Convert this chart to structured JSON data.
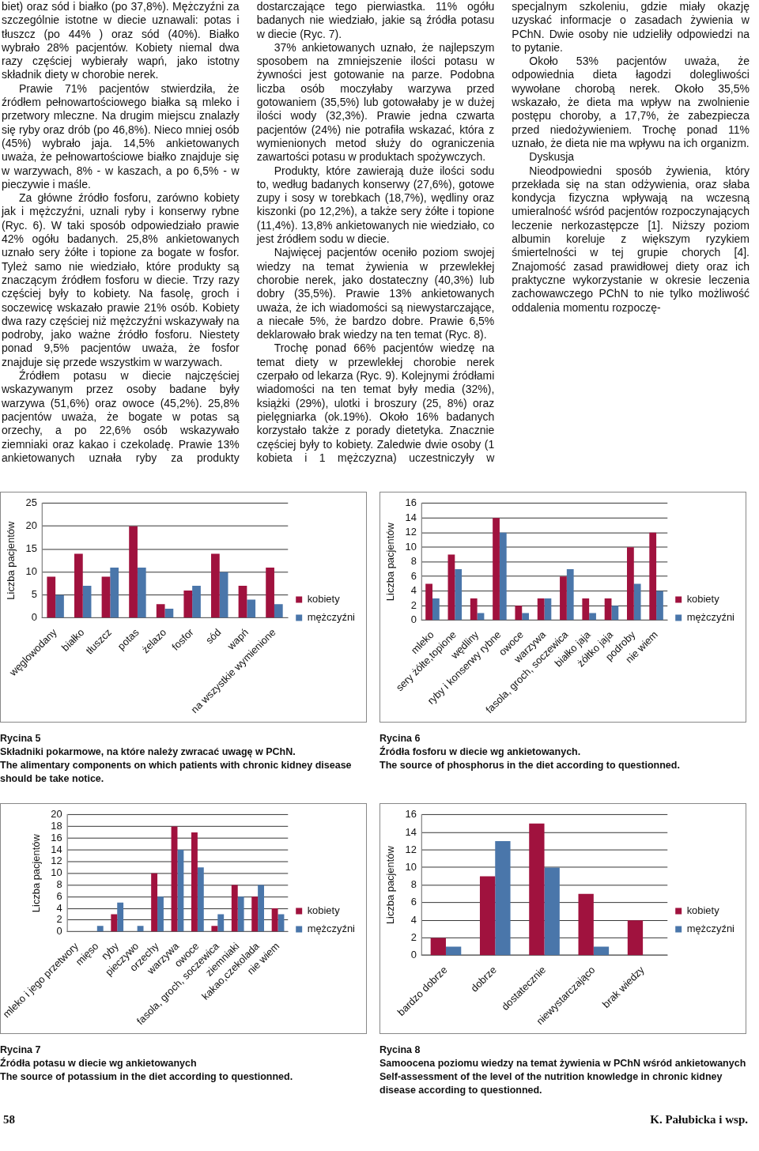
{
  "chart_data": [
    {
      "type": "other",
      "annotations": [
        "biet) oraz sód i białko (po 37,8%). Mężczyźni za szczególnie istotne w diecie uznawali: potas i tłuszcz (po 44% ) oraz sód (40%). Białko wybrało 28% pacjentów. Kobiety niemal dwa razy częściej wybierały wapń, jako istotny składnik diety w chorobie nerek.",
        "Prawie 71% pacjentów stwierdziła, że źródłem pełnowartościowego białka są mleko i przetwory mleczne. Na drugim miejscu znalazły się ryby oraz drób (po 46,8%). Nieco mniej osób (45%) wybrało jaja. 14,5% ankietowanych uważa, że pełnowartościowe białko znajduje się w warzywach, 8% - w kaszach, a po 6,5% - w pieczywie i maśle.",
        "Za główne źródło fosforu, zarówno kobiety jak i mężczyźni, uznali ryby i konserwy rybne (Ryc. 6). W taki sposób odpowiedziało prawie 42% ogółu badanych. 25,8% ankietowanych uznało sery żółte i topione za bogate w fosfor. Tyleż samo nie wiedziało, które produkty są znaczącym źródłem fosforu w diecie. Trzy razy częściej były to kobiety. Na fasolę, groch i soczewicę wskazało prawie 21% osób. Kobiety dwa razy częściej niż mężczyźni wskazywały na podroby, jako ważne źródło fosforu. Niestety ponad 9,5% pacjentów uważa, że fosfor znajduje się przede wszystkim w warzywach.",
        "Źródłem potasu w diecie najczęściej wskazywanym przez osoby badane były warzywa (51,6%) oraz owoce (45,2%). 25,8% pacjentów uważa, że bogate w potas są orzechy, a po 22,6% osób wskazywało ziemniaki oraz kakao i czekoladę. Prawie 13% ankietowanych uznała ryby za produkty dostarczające tego pierwiastka. 11% ogółu badanych nie wiedziało, jakie są źródła potasu w diecie (Ryc. 7).",
        "37% ankietowanych uznało, że najlepszym sposobem na zmniejszenie ilości potasu w żywności jest gotowanie na parze. Podobna liczba osób moczyłaby warzywa przed gotowaniem (35,5%) lub gotowałaby je w dużej ilości wody (32,3%). Prawie jedna czwarta pacjentów (24%) nie potrafiła wskazać, która z wymienionych metod służy do ograniczenia zawartości potasu w produktach spożywczych.",
        "Produkty, które zawierają duże ilości sodu to, według badanych konserwy (27,6%), gotowe zupy i sosy w torebkach (18,7%), wędliny oraz kiszonki (po 12,2%), a także sery żółte i topione (11,4%). 13,8% ankietowanych nie wiedziało, co jest źródłem sodu w diecie.",
        "Najwięcej pacjentów oceniło poziom swojej wiedzy na temat żywienia w przewlekłej chorobie nerek, jako dostateczny (40,3%) lub dobry (35,5%). Prawie 13% ankietowanych uważa, że ich wiadomości są niewystarczające, a niecałe 5%, że bardzo dobre. Prawie 6,5% deklarowało brak wiedzy na ten temat (Ryc. 8).",
        "Trochę ponad 66% pacjentów wiedzę na temat diety w przewlekłej chorobie nerek czerpało od lekarza (Ryc. 9). Kolejnymi źródłami wiadomości na ten temat były media (32%), książki (29%), ulotki i broszury (25, 8%) oraz pielęgniarka (ok.19%). Około 16% badanych korzystało także z porady dietetyka. Znacznie częściej były to kobiety. Zaledwie dwie osoby (1 kobieta i 1 mężczyzna) uczestniczyły w specjalnym szkoleniu, gdzie miały okazję uzyskać informacje o zasadach żywienia w PChN. Dwie osoby nie udzieliły odpowiedzi na to pytanie.",
        "Około 53% pacjentów uważa, że odpowiednia dieta łagodzi dolegliwości wywołane chorobą nerek. Około 35,5% wskazało, że dieta ma wpływ na zwolnienie postępu choroby, a 17,7%, że zabezpiecza przed niedożywieniem. Trochę ponad 11% uznało, że dieta nie ma wpływu na ich organizm.",
        "Dyskusja",
        "Nieodpowiedni sposób żywienia, który przekłada się na stan odżywienia, oraz słaba kondycja fizyczna wpływają na wczesną umieralność wśród pacjentów rozpoczynających leczenie nerkozastępcze [1]. Niższy poziom albumin koreluje z większym ryzykiem śmiertelności w tej grupie chorych [4]. Znajomość zasad prawidłowej diety oraz ich praktyczne wykorzystanie w okresie leczenia zachowawczego PChN to nie tylko możliwość oddalenia momentu rozpoczę-"
      ]
    },
    {
      "type": "bar",
      "title": "Rycina 5",
      "subtitle": "Składniki pokarmowe, na które należy zwracać uwagę w PChN.",
      "annotations": [
        "The alimentary components on which patients with chronic kidney disease should be take notice."
      ],
      "ylabel": "Liczba pacjentów",
      "categories": [
        "węglowodany",
        "białko",
        "tłuszcz",
        "potas",
        "żelazo",
        "fosfor",
        "sód",
        "wapń",
        "na wszystkie wymienione"
      ],
      "series": [
        {
          "name": "kobiety",
          "color": "#a0123e",
          "values": [
            9,
            14,
            9,
            20,
            3,
            6,
            14,
            7,
            11
          ]
        },
        {
          "name": "mężczyźni",
          "color": "#4a76aa",
          "values": [
            5,
            7,
            11,
            11,
            2,
            7,
            10,
            4,
            3
          ]
        }
      ],
      "ylim": [
        0,
        25
      ],
      "yticks": [
        0,
        5,
        10,
        15,
        20,
        25
      ],
      "grid": "y",
      "legend": "right"
    },
    {
      "type": "bar",
      "title": "Rycina 6",
      "subtitle": "Źródła fosforu w diecie wg ankietowanych.",
      "annotations": [
        "The source of phosphorus in the diet according to questionned."
      ],
      "ylabel": "Liczba pacjentów",
      "categories": [
        "mleko",
        "sery żółte,topione",
        "wędliny",
        "ryby i konserwy rybne",
        "owoce",
        "warzywa",
        "fasola, groch, soczewica",
        "białko jaja",
        "żółtko jaja",
        "podroby",
        "nie wiem"
      ],
      "series": [
        {
          "name": "kobiety",
          "color": "#a0123e",
          "values": [
            5,
            9,
            3,
            14,
            2,
            3,
            6,
            3,
            3,
            10,
            12
          ]
        },
        {
          "name": "mężczyźni",
          "color": "#4a76aa",
          "values": [
            3,
            7,
            1,
            12,
            1,
            3,
            7,
            1,
            2,
            5,
            4
          ]
        }
      ],
      "ylim": [
        0,
        16
      ],
      "yticks": [
        0,
        2,
        4,
        6,
        8,
        10,
        12,
        14,
        16
      ],
      "grid": "y",
      "legend": "right"
    },
    {
      "type": "bar",
      "title": "Rycina 7",
      "subtitle": "Źródła potasu w diecie wg ankietowanych",
      "annotations": [
        "The source of potassium in the diet according to questionned."
      ],
      "ylabel": "Liczba pacjentów",
      "categories": [
        "mleko i jego przetwory",
        "mięso",
        "ryby",
        "pieczywo",
        "orzechy",
        "warzywa",
        "owoce",
        "fasola, groch, soczewica",
        "ziemniaki",
        "kakao,czekolada",
        "nie wiem"
      ],
      "series": [
        {
          "name": "kobiety",
          "color": "#a0123e",
          "values": [
            0,
            0,
            3,
            0,
            10,
            18,
            17,
            1,
            8,
            6,
            4
          ]
        },
        {
          "name": "mężczyźni",
          "color": "#4a76aa",
          "values": [
            0,
            1,
            5,
            1,
            6,
            14,
            11,
            3,
            6,
            8,
            3
          ]
        }
      ],
      "ylim": [
        0,
        20
      ],
      "yticks": [
        0,
        2,
        4,
        6,
        8,
        10,
        12,
        14,
        16,
        18,
        20
      ],
      "grid": "y",
      "legend": "right"
    },
    {
      "type": "bar",
      "title": "Rycina 8",
      "subtitle": "Samoocena poziomu wiedzy na temat żywienia w PChN wśród ankietowanych",
      "annotations": [
        "Self-assessment of the level of the nutrition knowledge in chronic kidney disease according to questionned."
      ],
      "ylabel": "Liczba pacjentów",
      "categories": [
        "bardzo dobrze",
        "dobrze",
        "dostatecznie",
        "niewystarczająco",
        "brak wiedzy"
      ],
      "series": [
        {
          "name": "kobiety",
          "color": "#a0123e",
          "values": [
            2,
            9,
            15,
            7,
            4
          ]
        },
        {
          "name": "mężczyźni",
          "color": "#4a76aa",
          "values": [
            1,
            13,
            10,
            1,
            0
          ]
        }
      ],
      "ylim": [
        0,
        16
      ],
      "yticks": [
        0,
        2,
        4,
        6,
        8,
        10,
        12,
        14,
        16
      ],
      "grid": "y",
      "legend": "right"
    },
    {
      "type": "other",
      "annotations": [
        "58",
        "K. Pałubicka i wsp."
      ]
    }
  ]
}
